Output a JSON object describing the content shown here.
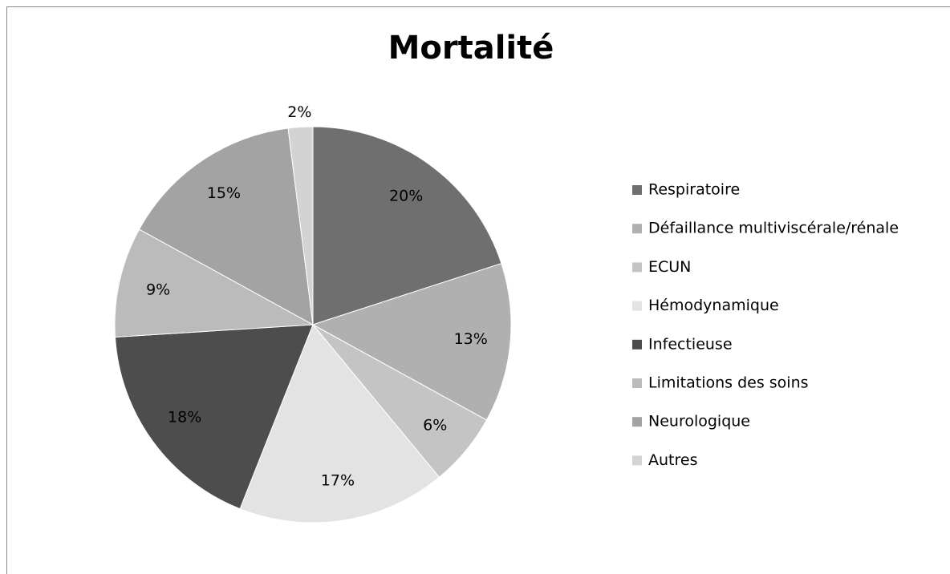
{
  "chart_data": {
    "type": "pie",
    "title": "Mortalité",
    "categories": [
      "Respiratoire",
      "Défaillance multiviscérale/rénale",
      "ECUN",
      "Hémodynamique",
      "Infectieuse",
      "Limitations des soins",
      "Neurologique",
      "Autres"
    ],
    "values": [
      20,
      13,
      6,
      17,
      18,
      9,
      15,
      2
    ],
    "value_labels": [
      "20%",
      "13%",
      "6%",
      "17%",
      "18%",
      "9%",
      "15%",
      "2%"
    ],
    "colors": [
      "#6f6f6f",
      "#b0b0b0",
      "#c4c4c4",
      "#e3e3e3",
      "#4d4d4d",
      "#bbbbbb",
      "#a3a3a3",
      "#d3d3d3"
    ],
    "legend": "right"
  }
}
